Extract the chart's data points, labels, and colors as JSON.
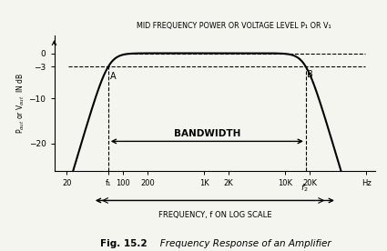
{
  "title_bold": "Fig. 15.2",
  "title_italic": "   Frequency Response of an Amplifier",
  "ylabel": "P$_{out}$ or V$_{out}$  IN dB",
  "xlabel": "FREQUENCY, f ON LOG SCALE",
  "top_label": "MID FREQUENCY POWER OR VOLTAGE LEVEL P₁ OR V₁",
  "bandwidth_label": "BANDWIDTH",
  "f1": 65,
  "f2": 18000,
  "fmin": 14,
  "fmax": 130000,
  "ylim": [
    -26,
    4
  ],
  "background_color": "#f5f5f0",
  "curve_color": "#000000",
  "dashed_color": "#000000",
  "font_color": "#000000",
  "xtick_pos": [
    20,
    65,
    100,
    200,
    1000,
    2000,
    10000,
    20000,
    100000
  ],
  "xtick_labels": [
    "20",
    "f₁",
    "100",
    "200",
    "1K",
    "2K",
    "10K",
    "20K",
    "Hz"
  ],
  "ytick_pos": [
    0,
    -3,
    -10,
    -20
  ],
  "ytick_labels": [
    "0",
    "−3",
    "−10",
    "−20"
  ]
}
